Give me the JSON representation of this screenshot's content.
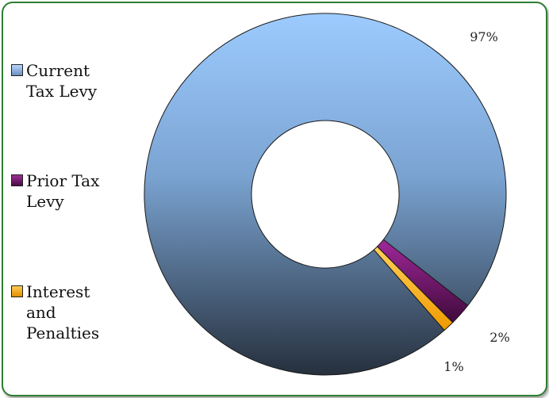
{
  "chart_data": {
    "type": "pie",
    "title": "",
    "series": [
      {
        "name": "",
        "values": [
          97,
          2,
          1
        ]
      }
    ],
    "categories": [
      "Current Tax Levy",
      "Prior Tax Levy",
      "Interest and Penalties"
    ],
    "data_labels": [
      "97%",
      "2%",
      "1%"
    ],
    "donut": true,
    "legend_position": "left",
    "colors": [
      "#8fbfff",
      "#7a1a73",
      "#ffb21f"
    ]
  },
  "legend": {
    "items": [
      {
        "label": "Current Tax Levy",
        "color": "#8fbfff"
      },
      {
        "label": "Prior Tax Levy",
        "color": "#7a1a73"
      },
      {
        "label": "Interest and Penalties",
        "color": "#ffb21f"
      }
    ]
  }
}
